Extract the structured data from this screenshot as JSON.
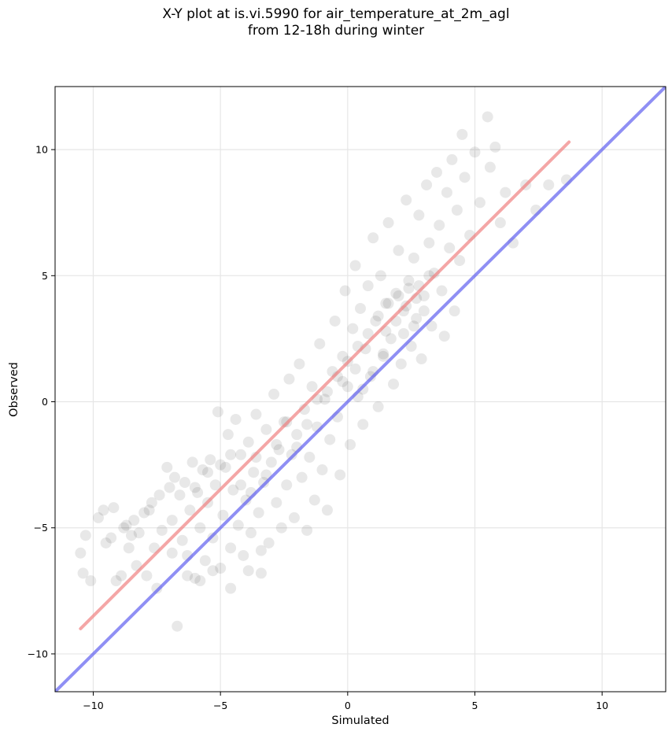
{
  "chart_data": {
    "type": "scatter",
    "title_line1": "X-Y plot at is.vi.5990 for air_temperature_at_2m_agl",
    "title_line2": "from 12-18h during winter",
    "xlabel": "Simulated",
    "ylabel": "Observed",
    "xlim": [
      -11.5,
      12.5
    ],
    "ylim": [
      -11.5,
      12.5
    ],
    "xticks": [
      -10,
      -5,
      0,
      5,
      10
    ],
    "yticks": [
      -10,
      -5,
      0,
      5,
      10
    ],
    "xtick_labels": [
      "−10",
      "−5",
      "0",
      "5",
      "10"
    ],
    "ytick_labels": [
      "−10",
      "−5",
      "0",
      "5",
      "10"
    ],
    "grid": true,
    "series": [
      {
        "kind": "scatter",
        "color": "#000000",
        "opacity": 0.09,
        "points": [
          [
            -10.5,
            -6.0
          ],
          [
            -10.4,
            -6.8
          ],
          [
            -10.3,
            -5.3
          ],
          [
            -10.1,
            -7.1
          ],
          [
            -9.8,
            -4.6
          ],
          [
            -9.6,
            -4.3
          ],
          [
            -9.3,
            -5.4
          ],
          [
            -9.2,
            -4.2
          ],
          [
            -9.1,
            -7.1
          ],
          [
            -8.9,
            -6.9
          ],
          [
            -8.7,
            -4.9
          ],
          [
            -8.6,
            -5.8
          ],
          [
            -8.5,
            -5.3
          ],
          [
            -8.4,
            -4.7
          ],
          [
            -8.3,
            -6.5
          ],
          [
            -8.2,
            -5.2
          ],
          [
            -8.0,
            -4.4
          ],
          [
            -7.9,
            -6.9
          ],
          [
            -7.7,
            -4.0
          ],
          [
            -7.6,
            -5.8
          ],
          [
            -7.5,
            -7.4
          ],
          [
            -7.4,
            -3.7
          ],
          [
            -7.3,
            -5.1
          ],
          [
            -7.1,
            -2.6
          ],
          [
            -7.0,
            -3.4
          ],
          [
            -6.9,
            -4.7
          ],
          [
            -6.8,
            -3.0
          ],
          [
            -6.7,
            -8.9
          ],
          [
            -6.6,
            -3.7
          ],
          [
            -6.5,
            -5.5
          ],
          [
            -6.4,
            -3.2
          ],
          [
            -6.3,
            -6.1
          ],
          [
            -6.2,
            -4.3
          ],
          [
            -6.1,
            -2.4
          ],
          [
            -6.0,
            -7.0
          ],
          [
            -5.9,
            -3.6
          ],
          [
            -5.8,
            -5.0
          ],
          [
            -5.7,
            -2.7
          ],
          [
            -5.6,
            -6.3
          ],
          [
            -5.5,
            -4.0
          ],
          [
            -5.4,
            -2.3
          ],
          [
            -5.3,
            -5.4
          ],
          [
            -5.2,
            -3.3
          ],
          [
            -5.1,
            -0.4
          ],
          [
            -5.0,
            -6.6
          ],
          [
            -4.9,
            -4.5
          ],
          [
            -4.8,
            -2.6
          ],
          [
            -4.7,
            -1.3
          ],
          [
            -4.6,
            -5.8
          ],
          [
            -4.5,
            -3.5
          ],
          [
            -4.4,
            -0.7
          ],
          [
            -4.3,
            -4.9
          ],
          [
            -4.2,
            -2.1
          ],
          [
            -4.1,
            -6.1
          ],
          [
            -4.0,
            -3.9
          ],
          [
            -3.9,
            -1.6
          ],
          [
            -3.8,
            -5.2
          ],
          [
            -3.7,
            -2.8
          ],
          [
            -3.6,
            -0.5
          ],
          [
            -3.5,
            -4.4
          ],
          [
            -3.4,
            -6.8
          ],
          [
            -3.3,
            -3.2
          ],
          [
            -3.2,
            -1.1
          ],
          [
            -3.1,
            -5.6
          ],
          [
            -3.0,
            -2.4
          ],
          [
            -2.9,
            0.3
          ],
          [
            -2.8,
            -4.0
          ],
          [
            -2.7,
            -1.9
          ],
          [
            -2.6,
            -5.0
          ],
          [
            -2.5,
            -0.8
          ],
          [
            -2.4,
            -3.3
          ],
          [
            -2.3,
            0.9
          ],
          [
            -2.2,
            -2.1
          ],
          [
            -2.1,
            -4.6
          ],
          [
            -2.0,
            -1.3
          ],
          [
            -1.9,
            1.5
          ],
          [
            -1.8,
            -3.0
          ],
          [
            -1.7,
            -0.3
          ],
          [
            -1.6,
            -5.1
          ],
          [
            -1.5,
            -2.2
          ],
          [
            -1.4,
            0.6
          ],
          [
            -1.3,
            -3.9
          ],
          [
            -1.2,
            -1.0
          ],
          [
            -1.1,
            2.3
          ],
          [
            -1.0,
            -2.7
          ],
          [
            -0.9,
            0.1
          ],
          [
            -0.8,
            -4.3
          ],
          [
            -0.7,
            -1.5
          ],
          [
            -0.6,
            1.2
          ],
          [
            -0.5,
            3.2
          ],
          [
            -0.4,
            -0.6
          ],
          [
            -0.3,
            -2.9
          ],
          [
            -0.2,
            1.8
          ],
          [
            -0.1,
            4.4
          ],
          [
            0.0,
            0.6
          ],
          [
            0.1,
            -1.7
          ],
          [
            0.2,
            2.9
          ],
          [
            0.3,
            5.4
          ],
          [
            0.4,
            0.2
          ],
          [
            0.5,
            3.7
          ],
          [
            0.6,
            -0.9
          ],
          [
            0.7,
            2.1
          ],
          [
            0.8,
            4.6
          ],
          [
            0.9,
            1.0
          ],
          [
            1.0,
            6.5
          ],
          [
            1.1,
            3.2
          ],
          [
            1.2,
            -0.2
          ],
          [
            1.3,
            5.0
          ],
          [
            1.4,
            1.8
          ],
          [
            1.5,
            3.9
          ],
          [
            1.6,
            7.1
          ],
          [
            1.7,
            2.5
          ],
          [
            1.8,
            0.7
          ],
          [
            1.9,
            4.3
          ],
          [
            2.0,
            6.0
          ],
          [
            2.1,
            1.5
          ],
          [
            2.2,
            3.6
          ],
          [
            2.3,
            8.0
          ],
          [
            2.4,
            4.8
          ],
          [
            2.5,
            2.2
          ],
          [
            2.6,
            5.7
          ],
          [
            2.7,
            3.3
          ],
          [
            2.8,
            7.4
          ],
          [
            2.9,
            1.7
          ],
          [
            3.0,
            4.2
          ],
          [
            3.1,
            8.6
          ],
          [
            3.2,
            6.3
          ],
          [
            3.3,
            3.0
          ],
          [
            3.4,
            5.1
          ],
          [
            3.5,
            9.1
          ],
          [
            3.6,
            7.0
          ],
          [
            3.7,
            4.4
          ],
          [
            3.8,
            2.6
          ],
          [
            3.9,
            8.3
          ],
          [
            4.0,
            6.1
          ],
          [
            4.1,
            9.6
          ],
          [
            4.2,
            3.6
          ],
          [
            4.3,
            7.6
          ],
          [
            4.4,
            5.6
          ],
          [
            4.5,
            10.6
          ],
          [
            4.6,
            8.9
          ],
          [
            4.8,
            6.6
          ],
          [
            5.0,
            9.9
          ],
          [
            5.2,
            7.9
          ],
          [
            5.5,
            11.3
          ],
          [
            5.6,
            9.3
          ],
          [
            5.8,
            10.1
          ],
          [
            6.0,
            7.1
          ],
          [
            6.2,
            8.3
          ],
          [
            6.5,
            6.3
          ],
          [
            7.0,
            8.6
          ],
          [
            7.4,
            7.6
          ],
          [
            7.9,
            8.6
          ],
          [
            8.6,
            8.8
          ],
          [
            -3.6,
            -2.2
          ],
          [
            -3.2,
            -2.9
          ],
          [
            -2.8,
            -1.7
          ],
          [
            -2.4,
            -0.8
          ],
          [
            -2.0,
            -1.8
          ],
          [
            -1.6,
            -0.9
          ],
          [
            -1.2,
            0.1
          ],
          [
            -0.8,
            0.4
          ],
          [
            -0.4,
            1.0
          ],
          [
            0.0,
            1.6
          ],
          [
            0.4,
            2.2
          ],
          [
            0.8,
            2.7
          ],
          [
            1.2,
            3.4
          ],
          [
            1.6,
            3.9
          ],
          [
            2.0,
            4.2
          ],
          [
            2.4,
            4.5
          ],
          [
            2.8,
            4.6
          ],
          [
            3.2,
            5.0
          ],
          [
            1.5,
            2.8
          ],
          [
            1.9,
            3.2
          ],
          [
            2.3,
            3.8
          ],
          [
            2.7,
            4.1
          ],
          [
            0.3,
            1.3
          ],
          [
            -0.2,
            0.8
          ],
          [
            -5.5,
            -2.8
          ],
          [
            -5.0,
            -2.5
          ],
          [
            -4.6,
            -2.1
          ],
          [
            -4.2,
            -3.3
          ],
          [
            -3.8,
            -3.6
          ],
          [
            -6.0,
            -3.4
          ],
          [
            1.0,
            1.2
          ],
          [
            1.4,
            1.9
          ],
          [
            0.6,
            0.5
          ],
          [
            2.2,
            2.7
          ],
          [
            2.6,
            3.0
          ],
          [
            3.0,
            3.6
          ],
          [
            -9.5,
            -5.6
          ],
          [
            -8.8,
            -5.0
          ],
          [
            -7.8,
            -4.3
          ],
          [
            -6.9,
            -6.0
          ],
          [
            -6.3,
            -6.9
          ],
          [
            -5.8,
            -7.1
          ],
          [
            -5.3,
            -6.7
          ],
          [
            -4.6,
            -7.4
          ],
          [
            -3.9,
            -6.7
          ],
          [
            -3.4,
            -5.9
          ]
        ]
      }
    ],
    "lines": [
      {
        "name": "",
        "kind": "fit",
        "color": "#f08080",
        "x": [
          -10.5,
          8.7
        ],
        "y": [
          -9.0,
          10.3
        ]
      },
      {
        "name": "",
        "kind": "one-to-one",
        "color": "#6060f0",
        "x": [
          -11.5,
          12.5
        ],
        "y": [
          -11.5,
          12.5
        ]
      }
    ]
  }
}
